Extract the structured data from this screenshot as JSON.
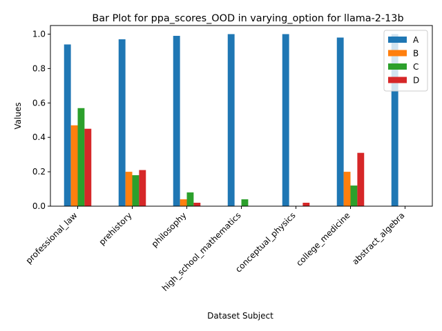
{
  "chart_data": {
    "type": "bar",
    "title": "Bar Plot for ppa_scores_OOD in varying_option for llama-2-13b",
    "xlabel": "Dataset Subject",
    "ylabel": "Values",
    "ylim": [
      0,
      1.05
    ],
    "yticks": [
      "0.0",
      "0.2",
      "0.4",
      "0.6",
      "0.8",
      "1.0"
    ],
    "grid": false,
    "legend_position": "top-right",
    "categories": [
      "professional_law",
      "prehistory",
      "philosophy",
      "high_school_mathematics",
      "conceptual_physics",
      "college_medicine",
      "abstract_algebra"
    ],
    "series": [
      {
        "name": "A",
        "color": "#1f77b4",
        "values": [
          0.94,
          0.97,
          0.99,
          1.0,
          1.0,
          0.98,
          1.0
        ]
      },
      {
        "name": "B",
        "color": "#ff7f0e",
        "values": [
          0.47,
          0.2,
          0.04,
          0.0,
          0.0,
          0.2,
          0.0
        ]
      },
      {
        "name": "C",
        "color": "#2ca02c",
        "values": [
          0.57,
          0.18,
          0.08,
          0.04,
          0.0,
          0.12,
          0.0
        ]
      },
      {
        "name": "D",
        "color": "#d62728",
        "values": [
          0.45,
          0.21,
          0.02,
          0.0,
          0.02,
          0.31,
          0.0
        ]
      }
    ]
  }
}
